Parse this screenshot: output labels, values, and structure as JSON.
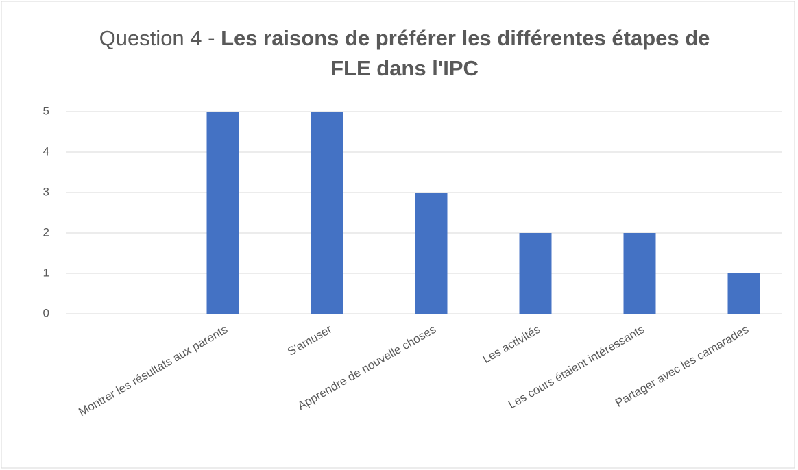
{
  "chart_data": {
    "type": "bar",
    "title_prefix": "Question 4 -",
    "title": "Les raisons de préférer les différentes étapes de FLE dans l'IPC",
    "categories": [
      null,
      "Montrer les résultats aux parents",
      "S'amuser",
      "Apprendre de nouvelle choses",
      "Les activités",
      "Les cours étaient intéressants",
      "Partager avec les camarades"
    ],
    "values": [
      null,
      5,
      5,
      3,
      2,
      2,
      1
    ],
    "color": "#4472c4",
    "ylim": [
      0,
      5
    ],
    "yticks": [
      0,
      1,
      2,
      3,
      4,
      5
    ],
    "grid": true
  }
}
